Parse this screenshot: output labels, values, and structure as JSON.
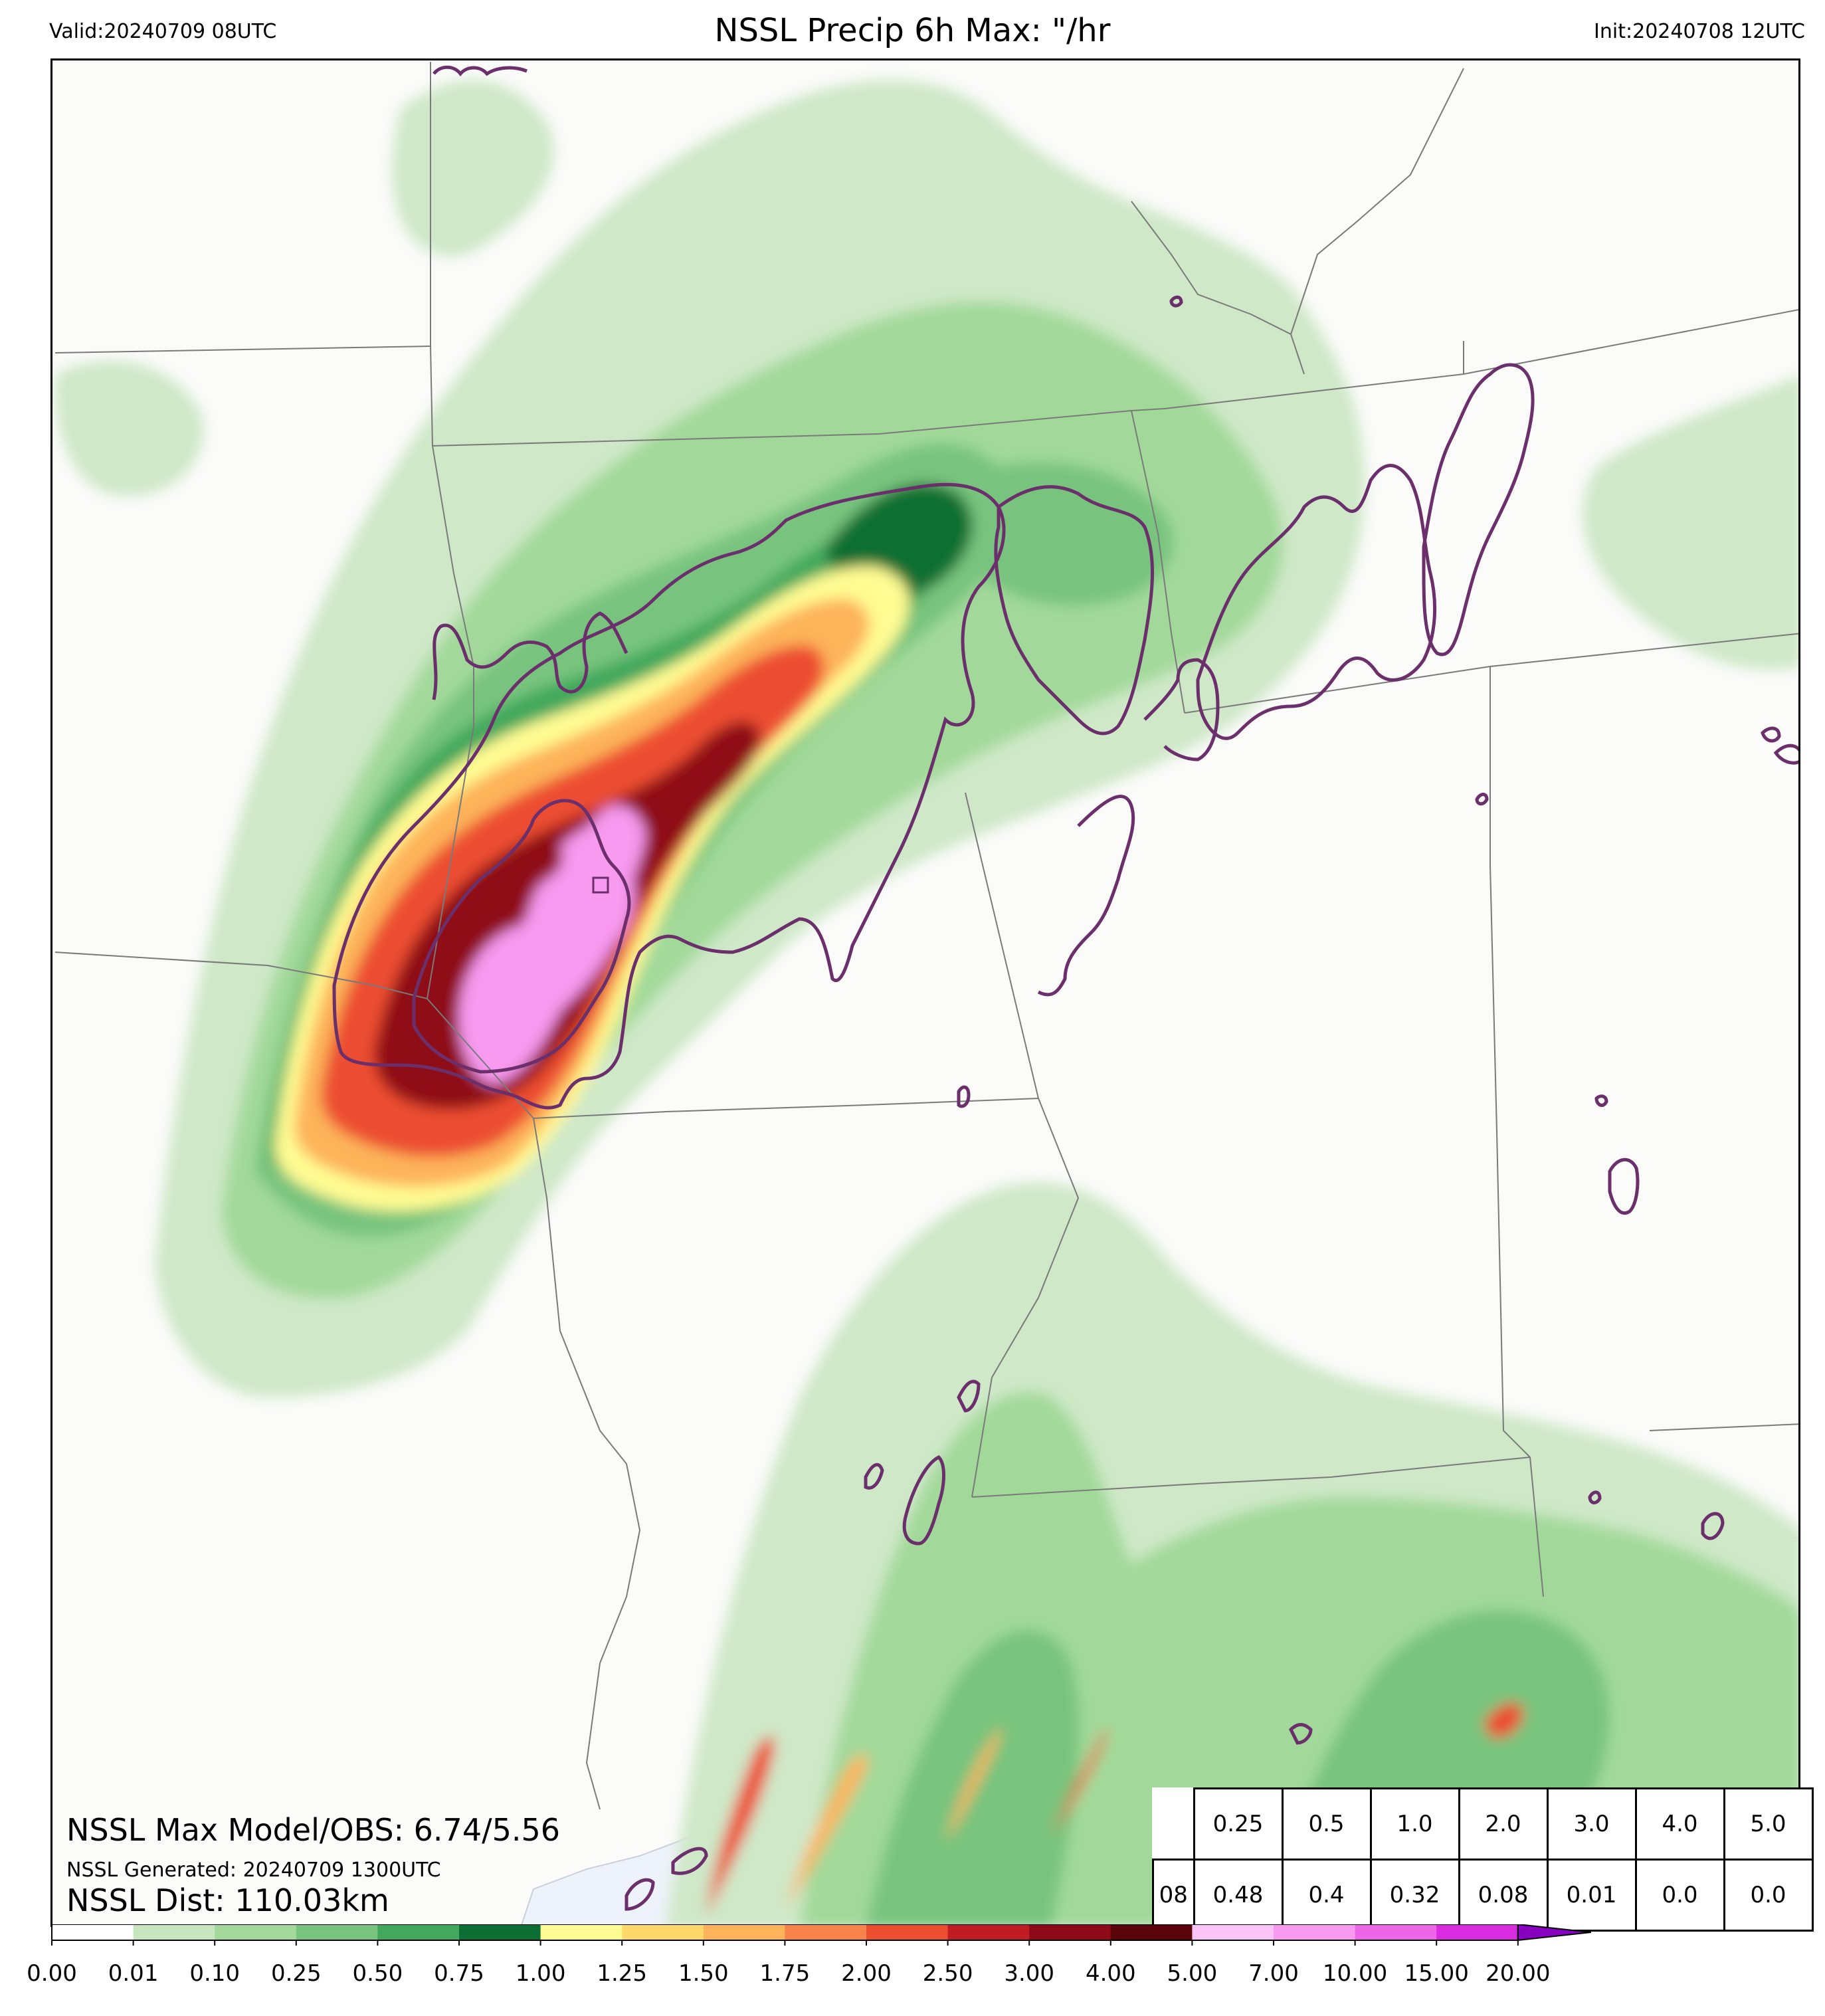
{
  "header": {
    "title": "NSSL Precip 6h Max: \"/hr",
    "valid": "Valid:20240709 08UTC",
    "init": "Init:20240708 12UTC"
  },
  "stats": {
    "max_label": "NSSL Max Model/OBS: 6.74/5.56",
    "generated_label": "NSSL Generated: 20240709 1300UTC",
    "dist_label": "NSSL Dist: 110.03km"
  },
  "threshold_table": {
    "thresholds": [
      "0.25",
      "0.5",
      "1.0",
      "2.0",
      "3.0",
      "4.0",
      "5.0"
    ],
    "row_label": "08",
    "values": [
      "0.48",
      "0.4",
      "0.32",
      "0.08",
      "0.01",
      "0.0",
      "0.0"
    ]
  },
  "colorbar": {
    "tick_labels": [
      "0.00",
      "0.01",
      "0.10",
      "0.25",
      "0.50",
      "0.75",
      "1.00",
      "1.25",
      "1.50",
      "1.75",
      "2.00",
      "2.50",
      "3.00",
      "4.00",
      "5.00",
      "7.00",
      "10.00",
      "15.00",
      "20.00"
    ],
    "colors": [
      "#ffffff",
      "#c7e6c0",
      "#a2d99a",
      "#78c47e",
      "#41a85c",
      "#0b6f33",
      "#fffb93",
      "#ffd86a",
      "#fdb35a",
      "#f8834a",
      "#ec4e30",
      "#c01c24",
      "#8e0a18",
      "#5a0409",
      "#fbc4f7",
      "#f79af0",
      "#ee66e8",
      "#d92be0",
      "#9606c7"
    ],
    "extend_color": "#8800c0"
  },
  "colors": {
    "obs_contour": "#6b2f6c",
    "state_lines": "#7a7a7a",
    "water": "#eef2fa",
    "land": "#fbfbfa"
  }
}
